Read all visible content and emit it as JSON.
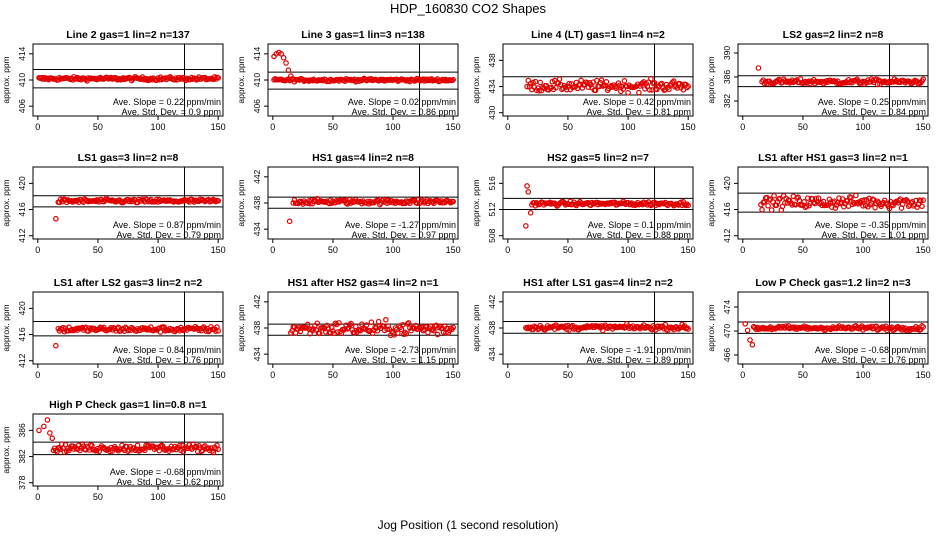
{
  "figure": {
    "title": "HDP_160830  CO2 Shapes",
    "xlabel": "Jog Position (1 second resolution)"
  },
  "colors": {
    "points": "#e00000",
    "axes": "#000000"
  },
  "chart_data": [
    {
      "type": "scatter",
      "title": "Line 2 gas=1 lin=2 n=137",
      "ylabel": "approx. ppm",
      "xlim": [
        -4,
        154
      ],
      "ylim": [
        404.5,
        415.5
      ],
      "yticks": [
        406,
        410,
        414
      ],
      "xticks": [
        0,
        50,
        100,
        150
      ],
      "hlines": [
        411.6,
        408.8
      ],
      "vline": 122,
      "slope_text": "Ave. Slope =  0.22  ppm/min",
      "sd_text": "Ave. Std. Dev. =  0.9  ppm",
      "x_start": 1,
      "x_end": 150,
      "level": 410.2,
      "noise": 0.25,
      "spike": []
    },
    {
      "type": "scatter",
      "title": "Line 3 gas=1 lin=3 n=138",
      "ylabel": "approx. ppm",
      "xlim": [
        -4,
        154
      ],
      "ylim": [
        404.5,
        415.5
      ],
      "yticks": [
        406,
        410,
        414
      ],
      "xticks": [
        0,
        50,
        100,
        150
      ],
      "hlines": [
        411.2,
        408.6
      ],
      "vline": 122,
      "slope_text": "Ave. Slope =  0.02  ppm/min",
      "sd_text": "Ave. Std. Dev. =  0.86  ppm",
      "x_start": 1,
      "x_end": 150,
      "level": 410.0,
      "noise": 0.2,
      "spike": [
        [
          1,
          413.6
        ],
        [
          3,
          414.0
        ],
        [
          5,
          414.2
        ],
        [
          7,
          414.0
        ],
        [
          9,
          413.4
        ],
        [
          11,
          412.6
        ],
        [
          13,
          411.5
        ],
        [
          15,
          410.6
        ]
      ]
    },
    {
      "type": "scatter",
      "title": "Line 4 (LT) gas=1 lin=4 n=2",
      "ylabel": "approx. ppm",
      "xlim": [
        -4,
        154
      ],
      "ylim": [
        429.5,
        440.5
      ],
      "yticks": [
        430,
        434,
        438
      ],
      "xticks": [
        0,
        50,
        100,
        150
      ],
      "hlines": [
        435.5,
        432.7
      ],
      "vline": 122,
      "slope_text": "Ave. Slope =  0.42  ppm/min",
      "sd_text": "Ave. Std. Dev. =  0.81  ppm",
      "x_start": 16,
      "x_end": 150,
      "level": 434.1,
      "noise": 0.8,
      "spike": []
    },
    {
      "type": "scatter",
      "title": "LS2 gas=2 lin=2 n=8",
      "ylabel": "approx. ppm",
      "xlim": [
        -4,
        154
      ],
      "ylim": [
        379.5,
        391.5
      ],
      "yticks": [
        382,
        386,
        390
      ],
      "xticks": [
        0,
        50,
        100,
        150
      ],
      "hlines": [
        386.2,
        384.4
      ],
      "vline": 122,
      "slope_text": "Ave. Slope =  0.25  ppm/min",
      "sd_text": "Ave. Std. Dev. =  0.84  ppm",
      "x_start": 16,
      "x_end": 150,
      "level": 385.2,
      "noise": 0.4,
      "spike": [
        [
          13,
          387.5
        ]
      ]
    },
    {
      "type": "scatter",
      "title": "LS1 gas=3 lin=2 n=8",
      "ylabel": "approx. ppm",
      "xlim": [
        -4,
        154
      ],
      "ylim": [
        411.5,
        422.5
      ],
      "yticks": [
        412,
        416,
        420
      ],
      "xticks": [
        0,
        50,
        100,
        150
      ],
      "hlines": [
        418.1,
        416.4
      ],
      "vline": 122,
      "slope_text": "Ave. Slope =  0.87  ppm/min",
      "sd_text": "Ave. Std. Dev. =  0.79  ppm",
      "x_start": 17,
      "x_end": 150,
      "level": 417.3,
      "noise": 0.3,
      "spike": [
        [
          15,
          414.6
        ]
      ]
    },
    {
      "type": "scatter",
      "title": "HS1 gas=4 lin=2 n=8",
      "ylabel": "approx. ppm",
      "xlim": [
        -4,
        154
      ],
      "ylim": [
        432.5,
        443.5
      ],
      "yticks": [
        434,
        438,
        442
      ],
      "xticks": [
        0,
        50,
        100,
        150
      ],
      "hlines": [
        438.9,
        437.2
      ],
      "vline": 122,
      "slope_text": "Ave. Slope =  -1.27  ppm/min",
      "sd_text": "Ave. Std. Dev. =  0.97  ppm",
      "x_start": 17,
      "x_end": 150,
      "level": 438.2,
      "noise": 0.35,
      "spike": [
        [
          14,
          435.2
        ]
      ]
    },
    {
      "type": "scatter",
      "title": "HS2 gas=5 lin=2 n=7",
      "ylabel": "approx. ppm",
      "xlim": [
        -4,
        154
      ],
      "ylim": [
        507.5,
        518.5
      ],
      "yticks": [
        508,
        512,
        516
      ],
      "xticks": [
        0,
        50,
        100,
        150
      ],
      "hlines": [
        513.7,
        512.0
      ],
      "vline": 122,
      "slope_text": "Ave. Slope =  0.1  ppm/min",
      "sd_text": "Ave. Std. Dev. =  0.88  ppm",
      "x_start": 20,
      "x_end": 150,
      "level": 512.9,
      "noise": 0.3,
      "spike": [
        [
          15,
          509.5
        ],
        [
          16,
          515.6
        ],
        [
          17,
          514.7
        ],
        [
          19,
          511.5
        ]
      ]
    },
    {
      "type": "scatter",
      "title": "LS1 after HS1 gas=3 lin=2 n=1",
      "ylabel": "approx. ppm",
      "xlim": [
        -4,
        154
      ],
      "ylim": [
        411.5,
        422.5
      ],
      "yticks": [
        412,
        416,
        420
      ],
      "xticks": [
        0,
        50,
        100,
        150
      ],
      "hlines": [
        418.5,
        415.6
      ],
      "vline": 122,
      "slope_text": "Ave. Slope =  -0.35  ppm/min",
      "sd_text": "Ave. Std. Dev. =  1.01  ppm",
      "x_start": 15,
      "x_end": 150,
      "level": 417.1,
      "noise": 0.9,
      "spike": []
    },
    {
      "type": "scatter",
      "title": "LS1 after LS2 gas=3 lin=2 n=2",
      "ylabel": "approx. ppm",
      "xlim": [
        -4,
        154
      ],
      "ylim": [
        411.5,
        422.5
      ],
      "yticks": [
        412,
        416,
        420
      ],
      "xticks": [
        0,
        50,
        100,
        150
      ],
      "hlines": [
        418.0,
        415.8
      ],
      "vline": 122,
      "slope_text": "Ave. Slope =  0.84  ppm/min",
      "sd_text": "Ave. Std. Dev. =  0.76  ppm",
      "x_start": 17,
      "x_end": 150,
      "level": 416.8,
      "noise": 0.4,
      "spike": [
        [
          15,
          414.3
        ]
      ]
    },
    {
      "type": "scatter",
      "title": "HS1 after HS2 gas=4 lin=2 n=1",
      "ylabel": "approx. ppm",
      "xlim": [
        -4,
        154
      ],
      "ylim": [
        432.5,
        443.5
      ],
      "yticks": [
        434,
        438,
        442
      ],
      "xticks": [
        0,
        50,
        100,
        150
      ],
      "hlines": [
        438.6,
        436.9
      ],
      "vline": 122,
      "slope_text": "Ave. Slope =  -2.73  ppm/min",
      "sd_text": "Ave. Std. Dev. =  1.15  ppm",
      "x_start": 15,
      "x_end": 150,
      "level": 437.9,
      "noise": 1.0,
      "spike": []
    },
    {
      "type": "scatter",
      "title": "HS1 after LS1 gas=4 lin=2 n=2",
      "ylabel": "approx. ppm",
      "xlim": [
        -4,
        154
      ],
      "ylim": [
        432.5,
        443.5
      ],
      "yticks": [
        434,
        438,
        442
      ],
      "xticks": [
        0,
        50,
        100,
        150
      ],
      "hlines": [
        439.0,
        437.2
      ],
      "vline": 122,
      "slope_text": "Ave. Slope =  -1.91  ppm/min",
      "sd_text": "Ave. Std. Dev. =  0.89  ppm",
      "x_start": 15,
      "x_end": 150,
      "level": 438.1,
      "noise": 0.35,
      "spike": []
    },
    {
      "type": "scatter",
      "title": "Low P Check gas=1.2 lin=2 n=3",
      "ylabel": "approx. ppm",
      "xlim": [
        -4,
        154
      ],
      "ylim": [
        464.5,
        476.5
      ],
      "yticks": [
        466,
        470,
        474
      ],
      "xticks": [
        0,
        50,
        100,
        150
      ],
      "hlines": [
        471.5,
        469.6
      ],
      "vline": 122,
      "slope_text": "Ave. Slope =  -0.68  ppm/min",
      "sd_text": "Ave. Std. Dev. =  0.76  ppm",
      "x_start": 9,
      "x_end": 150,
      "level": 470.5,
      "noise": 0.35,
      "spike": [
        [
          2,
          471.2
        ],
        [
          4,
          470.1
        ],
        [
          6,
          468.5
        ],
        [
          8,
          467.7
        ]
      ]
    },
    {
      "type": "scatter",
      "title": "High P Check gas=1 lin=0.8 n=1",
      "ylabel": "approx. ppm",
      "xlim": [
        -4,
        154
      ],
      "ylim": [
        377.5,
        388.5
      ],
      "yticks": [
        378,
        382,
        386
      ],
      "xticks": [
        0,
        50,
        100,
        150
      ],
      "hlines": [
        384.2,
        382.3
      ],
      "vline": 122,
      "slope_text": "Ave. Slope =  -0.68  ppm/min",
      "sd_text": "Ave. Std. Dev. =  0.62  ppm",
      "x_start": 13,
      "x_end": 150,
      "level": 383.3,
      "noise": 0.55,
      "spike": [
        [
          1,
          386.0
        ],
        [
          5,
          386.6
        ],
        [
          8,
          387.6
        ],
        [
          10,
          385.6
        ],
        [
          12,
          384.8
        ]
      ]
    }
  ]
}
